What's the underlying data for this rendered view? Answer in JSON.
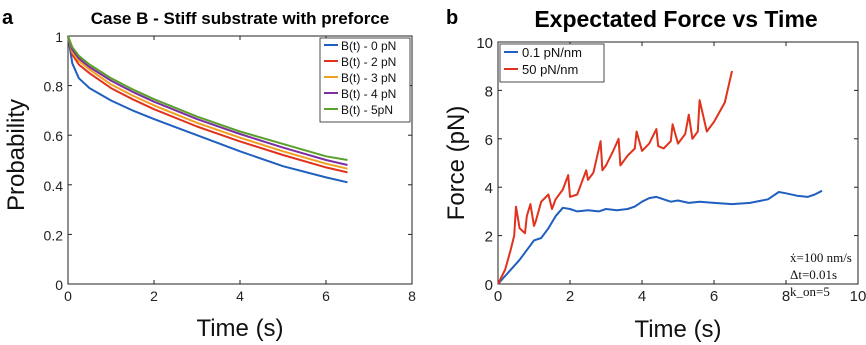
{
  "panels": [
    {
      "letter": "a",
      "title": "Case B - Stiff substrate with preforce"
    },
    {
      "letter": "b",
      "title": "Expectated Force vs Time"
    }
  ],
  "chart_data": [
    {
      "type": "line",
      "title": "Case B - Stiff substrate with preforce",
      "xlabel": "Time (s)",
      "ylabel": "Probability",
      "xlim": [
        0,
        8
      ],
      "ylim": [
        0,
        1
      ],
      "xticks": [
        "0",
        "2",
        "4",
        "6",
        "8"
      ],
      "yticks": [
        "0",
        "0.2",
        "0.4",
        "0.6",
        "0.8",
        "1"
      ],
      "legend_position": "top-right",
      "grid": false,
      "x": [
        0,
        0.1,
        0.25,
        0.5,
        1,
        1.5,
        2,
        3,
        4,
        5,
        6,
        6.5
      ],
      "series": [
        {
          "name": "B(t) - 0 pN",
          "color": "#1f5fbf",
          "values": [
            1.0,
            0.89,
            0.83,
            0.79,
            0.74,
            0.7,
            0.665,
            0.6,
            0.535,
            0.475,
            0.43,
            0.41
          ]
        },
        {
          "name": "B(t) - 2 pN",
          "color": "#e0321c",
          "values": [
            1.0,
            0.925,
            0.885,
            0.85,
            0.79,
            0.745,
            0.705,
            0.635,
            0.575,
            0.52,
            0.47,
            0.45
          ]
        },
        {
          "name": "B(t) - 3 pN",
          "color": "#f0a020",
          "values": [
            1.0,
            0.935,
            0.9,
            0.865,
            0.805,
            0.76,
            0.72,
            0.65,
            0.59,
            0.535,
            0.485,
            0.465
          ]
        },
        {
          "name": "B(t) - 4 pN",
          "color": "#7b2fa0",
          "values": [
            1.0,
            0.945,
            0.91,
            0.875,
            0.82,
            0.775,
            0.735,
            0.665,
            0.605,
            0.55,
            0.5,
            0.48
          ]
        },
        {
          "name": "B(t) - 5pN",
          "color": "#5aa02c",
          "values": [
            1.0,
            0.955,
            0.92,
            0.885,
            0.83,
            0.785,
            0.745,
            0.675,
            0.615,
            0.565,
            0.515,
            0.5
          ]
        }
      ]
    },
    {
      "type": "line",
      "title": "Expectated Force vs Time",
      "xlabel": "Time (s)",
      "ylabel": "Force (pN)",
      "xlim": [
        0,
        10
      ],
      "ylim": [
        0,
        10
      ],
      "xticks": [
        "0",
        "2",
        "4",
        "6",
        "8",
        "10"
      ],
      "yticks": [
        "0",
        "2",
        "4",
        "6",
        "8",
        "10"
      ],
      "legend_position": "top-left",
      "grid": false,
      "annotations": [
        "ẋ=100 nm/s",
        "Δt=0.01s",
        "k_on=5"
      ],
      "series": [
        {
          "name": "0.1 pN/nm",
          "color": "#1f5fbf",
          "x": [
            0,
            0.3,
            0.6,
            0.9,
            1.0,
            1.2,
            1.4,
            1.6,
            1.8,
            2.0,
            2.2,
            2.5,
            2.8,
            3.0,
            3.3,
            3.6,
            3.8,
            4.0,
            4.2,
            4.4,
            4.6,
            4.8,
            5.0,
            5.3,
            5.6,
            6.0,
            6.5,
            7.0,
            7.5,
            7.8,
            8.0,
            8.3,
            8.6,
            8.8,
            9.0
          ],
          "values": [
            0,
            0.5,
            1.0,
            1.6,
            1.8,
            1.9,
            2.3,
            2.8,
            3.15,
            3.1,
            3.0,
            3.05,
            3.0,
            3.1,
            3.05,
            3.1,
            3.2,
            3.4,
            3.55,
            3.6,
            3.5,
            3.4,
            3.45,
            3.35,
            3.4,
            3.35,
            3.3,
            3.35,
            3.5,
            3.8,
            3.75,
            3.65,
            3.6,
            3.7,
            3.85
          ]
        },
        {
          "name": "50 pN/nm",
          "color": "#e0321c",
          "x": [
            0,
            0.2,
            0.35,
            0.45,
            0.5,
            0.6,
            0.75,
            0.8,
            0.9,
            1.0,
            1.05,
            1.2,
            1.4,
            1.5,
            1.6,
            1.8,
            1.95,
            2.0,
            2.2,
            2.45,
            2.5,
            2.65,
            2.85,
            2.9,
            3.0,
            3.2,
            3.35,
            3.4,
            3.6,
            3.8,
            3.85,
            4.0,
            4.2,
            4.4,
            4.45,
            4.6,
            4.8,
            4.85,
            5.0,
            5.2,
            5.3,
            5.4,
            5.55,
            5.6,
            5.8,
            6.0,
            6.3,
            6.5
          ],
          "values": [
            0,
            0.6,
            1.4,
            2.0,
            3.2,
            2.3,
            2.1,
            2.8,
            3.3,
            2.4,
            2.6,
            3.4,
            3.7,
            3.1,
            3.5,
            3.9,
            4.5,
            3.6,
            3.7,
            4.7,
            4.3,
            4.6,
            5.9,
            4.7,
            4.9,
            5.5,
            6.0,
            4.9,
            5.3,
            5.6,
            6.3,
            5.5,
            5.8,
            6.4,
            5.7,
            5.6,
            5.9,
            6.6,
            5.8,
            6.2,
            7.0,
            6.0,
            6.3,
            7.6,
            6.3,
            6.7,
            7.5,
            8.8
          ]
        }
      ]
    }
  ]
}
